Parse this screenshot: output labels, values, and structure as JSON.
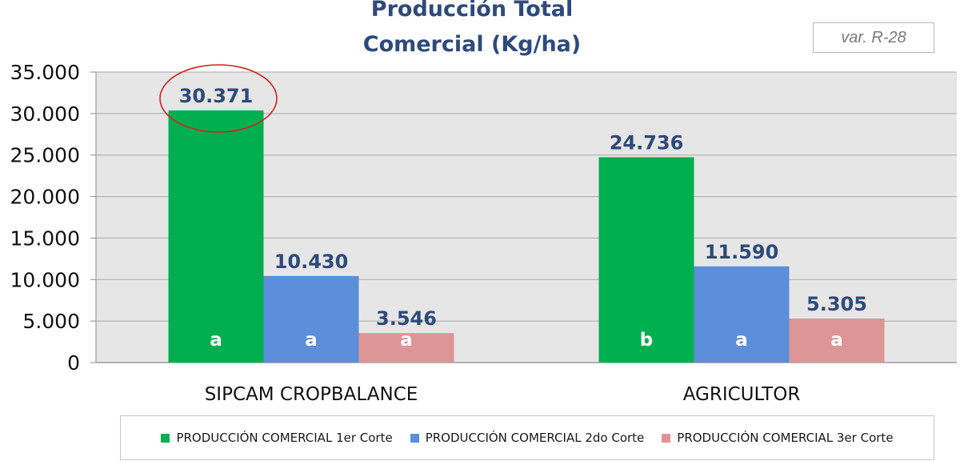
{
  "chart_data": {
    "type": "bar",
    "title_line1": "Producción Total",
    "title_line2": "Comercial (Kg/ha)",
    "variety_label": "var. R-28",
    "categories": [
      "SIPCAM CROPBALANCE",
      "AGRICULTOR"
    ],
    "series": [
      {
        "name": "PRODUCCIÓN COMERCIAL 1er Corte",
        "color": "#00b050",
        "values": [
          30371,
          24736
        ],
        "value_labels": [
          "30.371",
          "24.736"
        ],
        "significance": [
          "a",
          "b"
        ]
      },
      {
        "name": "PRODUCCIÓN COMERCIAL 2do Corte",
        "color": "#5b8fd9",
        "values": [
          10430,
          11590
        ],
        "value_labels": [
          "10.430",
          "11.590"
        ],
        "significance": [
          "a",
          "a"
        ]
      },
      {
        "name": "PRODUCCIÓN COMERCIAL 3er Corte",
        "color": "#de9595",
        "values": [
          3546,
          5305
        ],
        "value_labels": [
          "3.546",
          "5.305"
        ],
        "significance": [
          "a",
          "a"
        ]
      }
    ],
    "ylim": [
      0,
      35000
    ],
    "yticks": [
      0,
      5000,
      10000,
      15000,
      20000,
      25000,
      30000,
      35000
    ],
    "ytick_labels": [
      "0",
      "5.000",
      "10.000",
      "15.000",
      "20.000",
      "25.000",
      "30.000",
      "35.000"
    ],
    "grid": true,
    "legend_position": "bottom",
    "highlight": {
      "series": 0,
      "category": 0,
      "shape": "ellipse",
      "color": "#d62020"
    },
    "colors": {
      "plot_background": "#e6e6e6",
      "gridline": "#ababab",
      "value_label": "#2e4a7a",
      "title": "#2e4a7a"
    }
  }
}
